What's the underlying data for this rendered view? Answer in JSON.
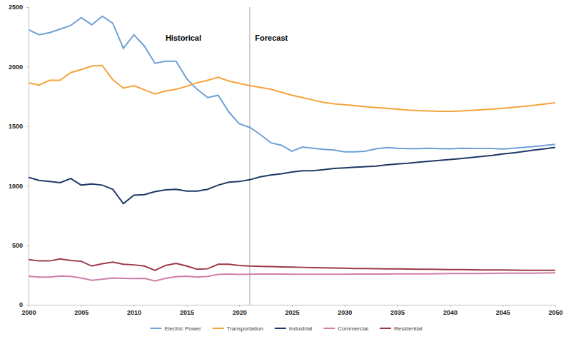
{
  "chart_data": {
    "type": "line",
    "x": [
      2000,
      2001,
      2002,
      2003,
      2004,
      2005,
      2006,
      2007,
      2008,
      2009,
      2010,
      2011,
      2012,
      2013,
      2014,
      2015,
      2016,
      2017,
      2018,
      2019,
      2020,
      2021,
      2022,
      2023,
      2024,
      2025,
      2026,
      2027,
      2028,
      2029,
      2030,
      2031,
      2032,
      2033,
      2034,
      2035,
      2036,
      2037,
      2038,
      2039,
      2040,
      2041,
      2042,
      2043,
      2044,
      2045,
      2046,
      2047,
      2048,
      2049,
      2050
    ],
    "series": [
      {
        "name": "Electric Power",
        "color": "#6fa0d6",
        "values": [
          2310,
          2268,
          2286,
          2316,
          2346,
          2412,
          2352,
          2424,
          2364,
          2154,
          2268,
          2172,
          2028,
          2046,
          2046,
          1900,
          1810,
          1740,
          1760,
          1620,
          1520,
          1490,
          1430,
          1360,
          1340,
          1290,
          1325,
          1315,
          1305,
          1300,
          1285,
          1285,
          1290,
          1310,
          1320,
          1315,
          1312,
          1312,
          1315,
          1312,
          1310,
          1315,
          1313,
          1313,
          1313,
          1308,
          1315,
          1322,
          1330,
          1338,
          1347
        ]
      },
      {
        "name": "Transportation",
        "color": "#f5a33c",
        "values": [
          1865,
          1845,
          1885,
          1885,
          1950,
          1975,
          2005,
          2010,
          1890,
          1820,
          1840,
          1805,
          1770,
          1795,
          1810,
          1835,
          1865,
          1885,
          1910,
          1880,
          1860,
          1840,
          1825,
          1810,
          1785,
          1760,
          1740,
          1720,
          1700,
          1688,
          1680,
          1672,
          1663,
          1656,
          1650,
          1643,
          1635,
          1630,
          1627,
          1625,
          1625,
          1628,
          1632,
          1638,
          1643,
          1650,
          1658,
          1667,
          1676,
          1686,
          1697
        ]
      },
      {
        "name": "Industrial",
        "color": "#1f3864",
        "values": [
          1070,
          1045,
          1035,
          1025,
          1060,
          1005,
          1015,
          1005,
          970,
          850,
          920,
          925,
          950,
          965,
          970,
          955,
          955,
          970,
          1005,
          1030,
          1035,
          1050,
          1075,
          1090,
          1100,
          1115,
          1125,
          1125,
          1135,
          1145,
          1150,
          1155,
          1160,
          1165,
          1175,
          1183,
          1188,
          1198,
          1205,
          1212,
          1220,
          1228,
          1237,
          1246,
          1255,
          1266,
          1276,
          1287,
          1299,
          1310,
          1322
        ]
      },
      {
        "name": "Commercial",
        "color": "#cf7fa6",
        "values": [
          240,
          232,
          232,
          242,
          238,
          225,
          205,
          215,
          225,
          222,
          220,
          222,
          200,
          222,
          235,
          240,
          232,
          238,
          255,
          258,
          255,
          257,
          258,
          258,
          258,
          257,
          257,
          257,
          257,
          257,
          257,
          258,
          258,
          258,
          258,
          259,
          259,
          260,
          260,
          261,
          262,
          262,
          263,
          263,
          264,
          265,
          265,
          266,
          266,
          267,
          268
        ]
      },
      {
        "name": "Residential",
        "color": "#9c3a48",
        "values": [
          380,
          368,
          368,
          385,
          372,
          365,
          325,
          345,
          358,
          340,
          335,
          325,
          288,
          330,
          348,
          325,
          298,
          302,
          340,
          340,
          330,
          325,
          322,
          320,
          318,
          316,
          314,
          312,
          310,
          309,
          307,
          305,
          304,
          303,
          302,
          301,
          300,
          299,
          298,
          297,
          296,
          295,
          294,
          293,
          292,
          292,
          291,
          290,
          290,
          289,
          289
        ]
      }
    ],
    "xlim": [
      2000,
      2050
    ],
    "xticks": [
      2000,
      2005,
      2010,
      2015,
      2020,
      2025,
      2030,
      2035,
      2040,
      2045,
      2050
    ],
    "ylim": [
      0,
      2500
    ],
    "yticks": [
      0,
      500,
      1000,
      1500,
      2000,
      2500
    ],
    "grid": false,
    "legend": "bottom",
    "vertical_line": 2021,
    "annotations": [
      {
        "text": "Historical",
        "x": 2013,
        "y": 2220
      },
      {
        "text": "Forecast",
        "x": 2021.5,
        "y": 2220
      }
    ]
  }
}
